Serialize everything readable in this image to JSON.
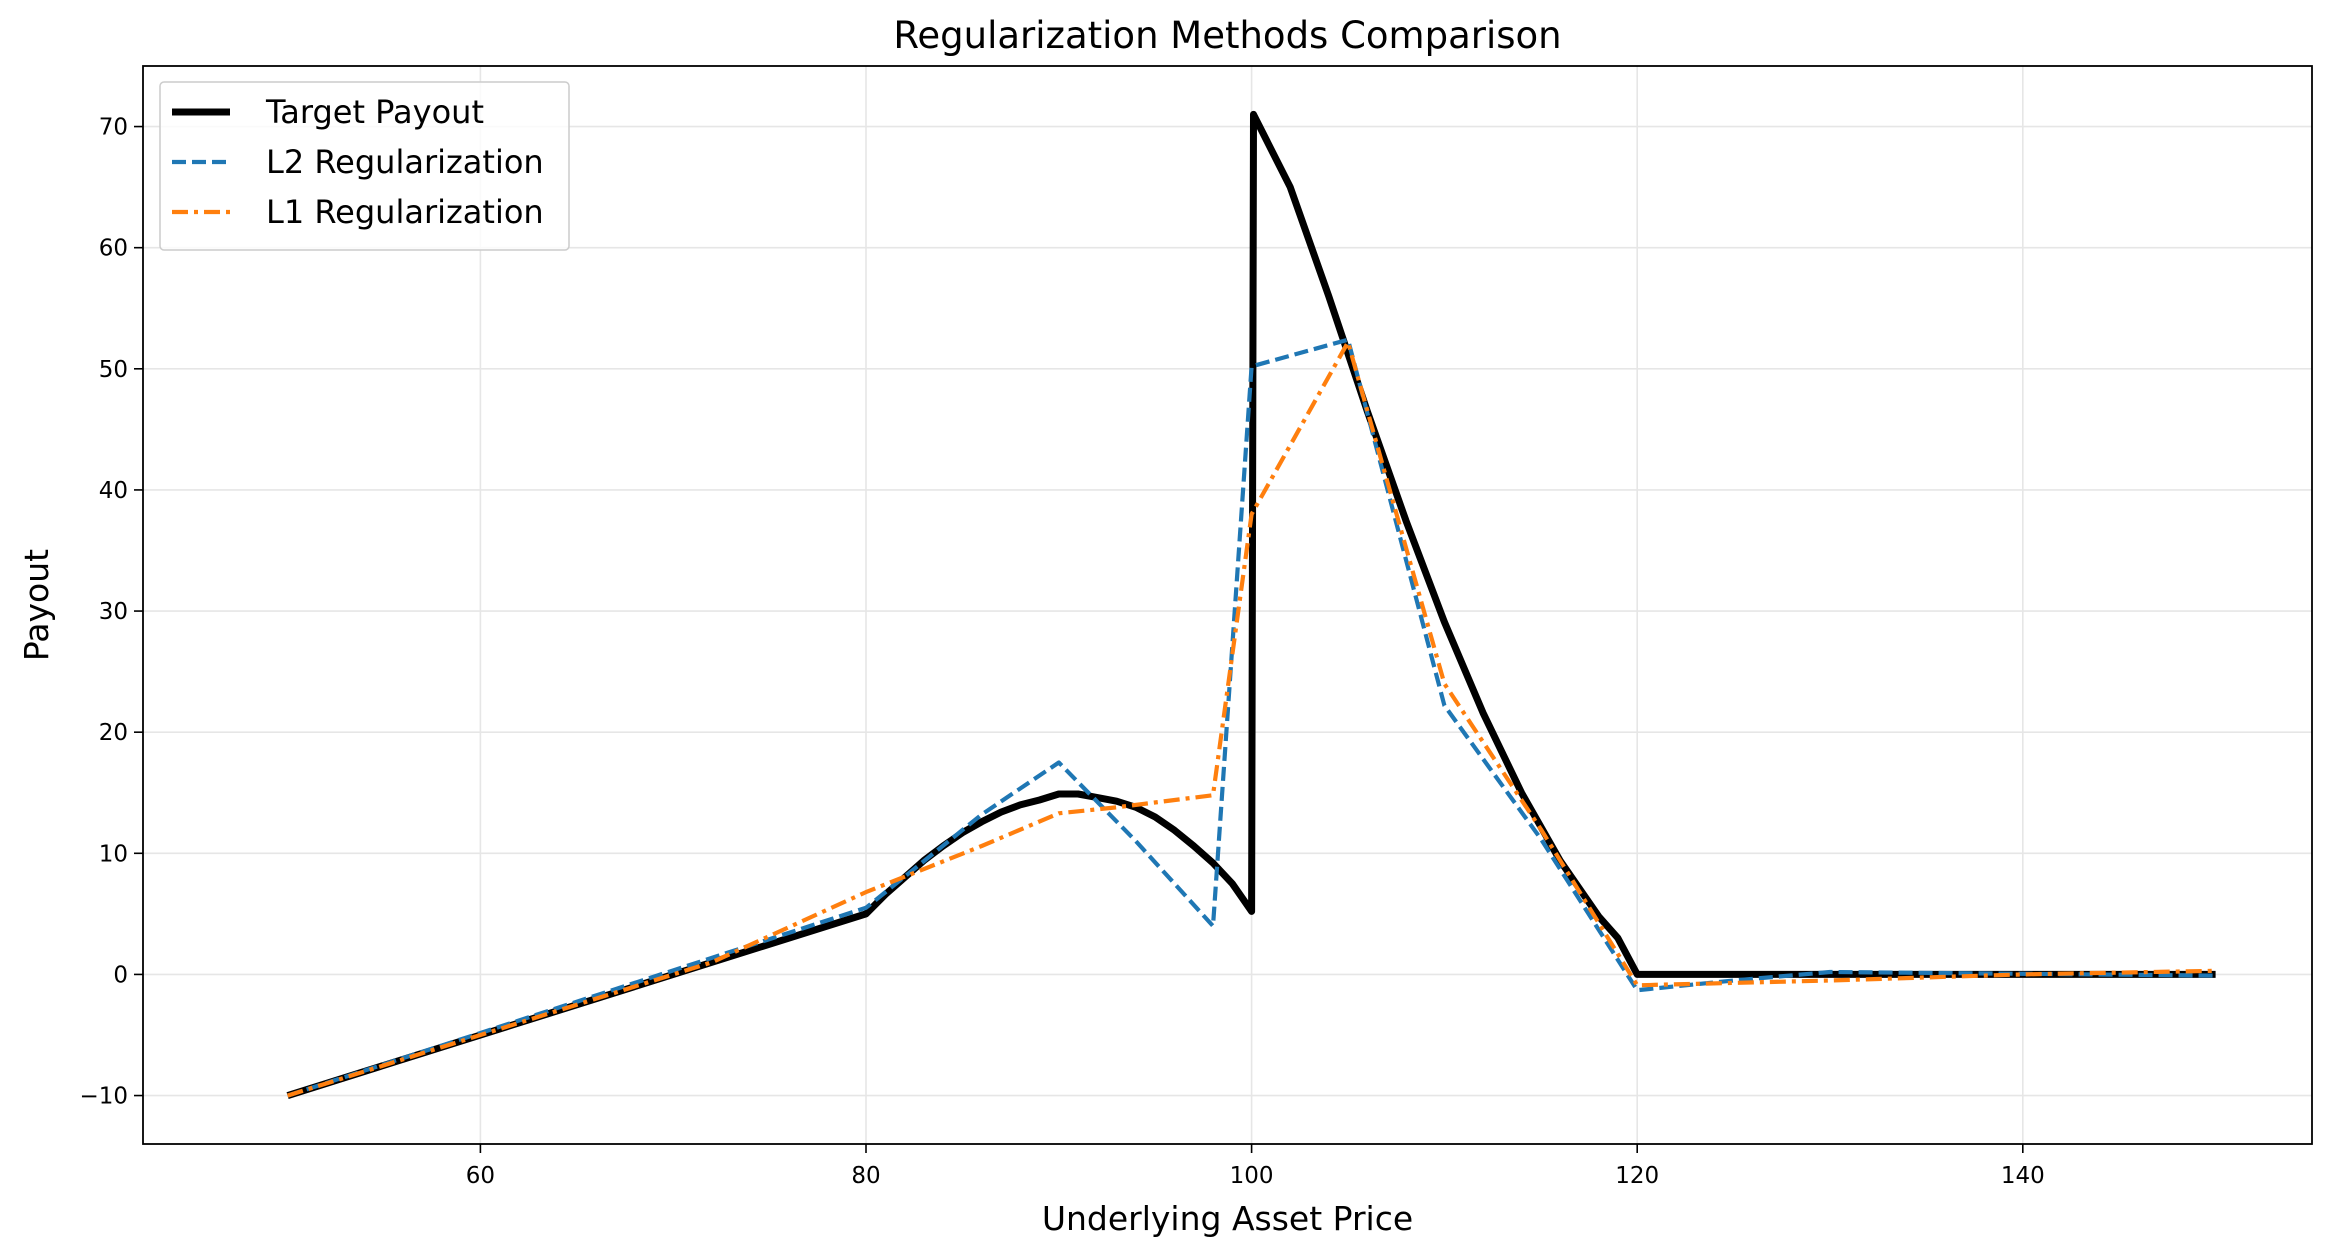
{
  "chart_data": {
    "type": "line",
    "title": "Regularization Methods Comparison",
    "xlabel": "Underlying Asset Price",
    "ylabel": "Payout",
    "xlim": [
      42.5,
      155
    ],
    "ylim": [
      -14,
      75
    ],
    "xticks": [
      60,
      80,
      100,
      120,
      140
    ],
    "yticks": [
      -10,
      0,
      10,
      20,
      30,
      40,
      50,
      60,
      70
    ],
    "grid": true,
    "legend_position": "upper-left",
    "series": [
      {
        "name": "Target Payout",
        "color": "#000000",
        "style": "solid",
        "points": [
          [
            50,
            -10
          ],
          [
            80,
            5
          ],
          [
            81,
            6.6
          ],
          [
            82,
            8
          ],
          [
            83,
            9.4
          ],
          [
            84,
            10.6
          ],
          [
            85,
            11.7
          ],
          [
            86,
            12.6
          ],
          [
            87,
            13.4
          ],
          [
            88,
            14.0
          ],
          [
            89,
            14.4
          ],
          [
            90,
            14.9
          ],
          [
            91,
            14.9
          ],
          [
            92,
            14.6
          ],
          [
            93,
            14.3
          ],
          [
            94,
            13.8
          ],
          [
            95,
            13.0
          ],
          [
            96,
            11.9
          ],
          [
            97,
            10.6
          ],
          [
            98,
            9.2
          ],
          [
            99,
            7.5
          ],
          [
            100,
            5.2
          ],
          [
            100.1,
            71
          ],
          [
            102,
            65
          ],
          [
            104,
            56
          ],
          [
            106,
            46.5
          ],
          [
            108,
            37.5
          ],
          [
            110,
            29.1
          ],
          [
            112,
            21.6
          ],
          [
            114,
            15
          ],
          [
            116,
            9.4
          ],
          [
            118,
            4.8
          ],
          [
            119,
            3
          ],
          [
            120,
            0
          ],
          [
            150,
            0
          ]
        ]
      },
      {
        "name": "L2 Regularization",
        "color": "#1f77b4",
        "style": "dashed",
        "points": [
          [
            50,
            -10
          ],
          [
            80,
            5.5
          ],
          [
            86,
            13.2
          ],
          [
            90,
            17.5
          ],
          [
            94,
            11
          ],
          [
            98,
            4
          ],
          [
            100,
            50.2
          ],
          [
            105,
            52.4
          ],
          [
            110,
            22.2
          ],
          [
            115,
            11.2
          ],
          [
            120,
            -1.3
          ],
          [
            125,
            -0.5
          ],
          [
            130,
            0.2
          ],
          [
            150,
            -0.1
          ]
        ]
      },
      {
        "name": "L1 Regularization",
        "color": "#ff7f0e",
        "style": "dashdot",
        "points": [
          [
            50,
            -10
          ],
          [
            72,
            1
          ],
          [
            80,
            6.8
          ],
          [
            86,
            10.6
          ],
          [
            90,
            13.3
          ],
          [
            93,
            13.8
          ],
          [
            98,
            14.8
          ],
          [
            100,
            38
          ],
          [
            105,
            52.2
          ],
          [
            110,
            24
          ],
          [
            115,
            12
          ],
          [
            120,
            -0.9
          ],
          [
            130,
            -0.5
          ],
          [
            140,
            0
          ],
          [
            150,
            0.3
          ]
        ]
      }
    ]
  }
}
